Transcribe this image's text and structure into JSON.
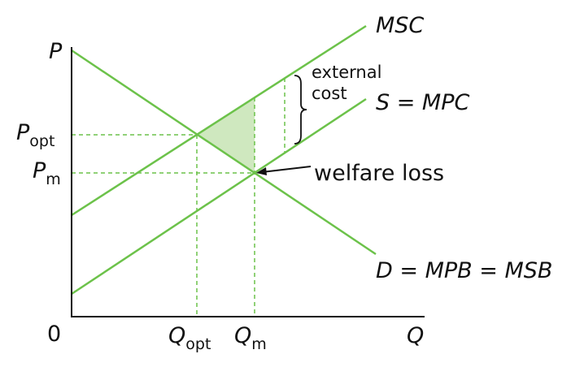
{
  "axes": {
    "y": "P",
    "x": "Q",
    "origin": "0"
  },
  "price_labels": [
    {
      "main": "P",
      "sub": "opt"
    },
    {
      "main": "P",
      "sub": "m"
    }
  ],
  "quantity_labels": [
    {
      "main": "Q",
      "sub": "opt"
    },
    {
      "main": "Q",
      "sub": "m"
    }
  ],
  "curves": {
    "msc": "MSC",
    "supply": "S = MPC",
    "demand": "D = MPB = MSB"
  },
  "annotations": {
    "external_cost": [
      "external",
      "cost"
    ],
    "welfare_loss": "welfare loss"
  }
}
